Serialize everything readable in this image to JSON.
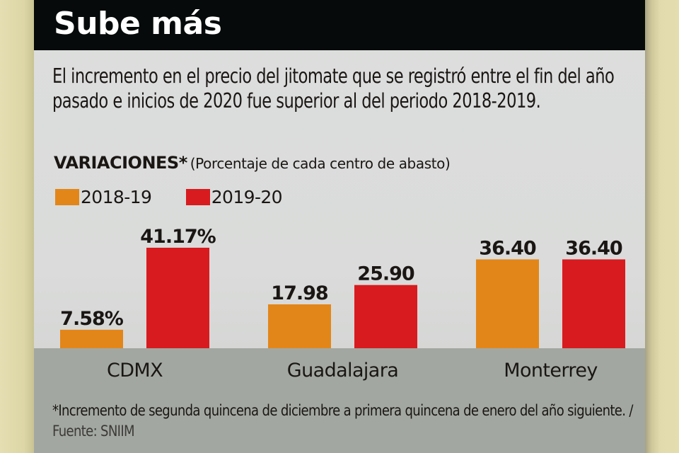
{
  "header": {
    "title": "Sube más"
  },
  "intro_text": "El incremento en el precio del jitomate que se registró entre el fin del año pasado e inicios de 2020 fue superior al del periodo 2018-2019.",
  "subtitle": {
    "bold": "VARIACIONES*",
    "light": "(Porcentaje de cada centro de abasto)"
  },
  "footnote": {
    "text": "*Incremento de segunda quincena de diciembre a primera quincena de enero del año siguiente. /",
    "source": " Fuente: SNIIM"
  },
  "colors": {
    "series_2018_19": "#e38619",
    "series_2019_20": "#d81b1f",
    "header_bg": "#060a0a",
    "baseline_band": "#a2a8a1"
  },
  "chart_data": {
    "type": "bar",
    "title": "VARIACIONES*",
    "subtitle": "(Porcentaje de cada centro de abasto)",
    "xlabel": "",
    "ylabel": "",
    "categories": [
      "CDMX",
      "Guadalajara",
      "Monterrey"
    ],
    "series": [
      {
        "name": "2018-19",
        "color": "#e38619",
        "values": [
          7.58,
          17.98,
          36.4
        ],
        "labels": [
          "7.58%",
          "17.98",
          "36.40"
        ]
      },
      {
        "name": "2019-20",
        "color": "#d81b1f",
        "values": [
          41.17,
          25.9,
          36.4
        ],
        "labels": [
          "41.17%",
          "25.90",
          "36.40"
        ]
      }
    ],
    "ylim": [
      0,
      45
    ],
    "grid": false,
    "legend": "top-left",
    "axis_visible": false
  }
}
